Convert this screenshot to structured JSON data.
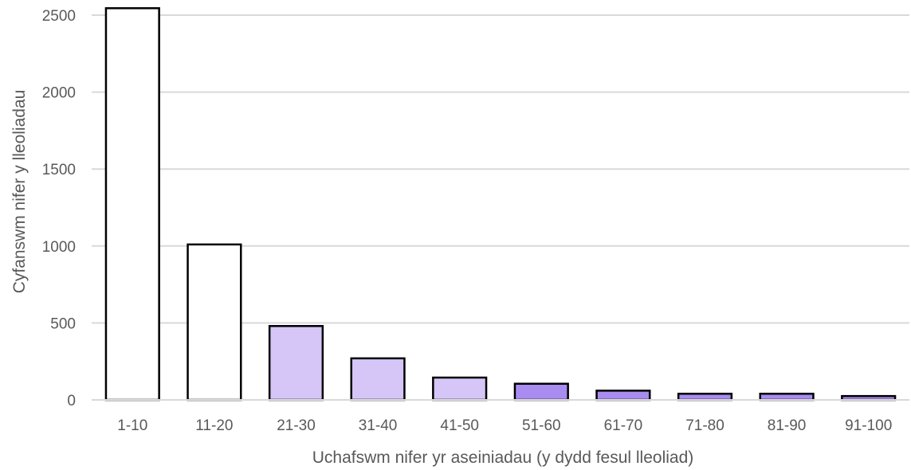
{
  "chart_data": {
    "type": "bar",
    "title": "",
    "xlabel": "Uchafswm nifer yr aseiniadau (y dydd fesul lleoliad)",
    "ylabel": "Cyfanswm nifer y lleoliadau",
    "categories": [
      "1-10",
      "11-20",
      "21-30",
      "31-40",
      "41-50",
      "51-60",
      "61-70",
      "71-80",
      "81-90",
      "91-100"
    ],
    "values": [
      2545,
      1010,
      480,
      270,
      145,
      105,
      60,
      40,
      40,
      25
    ],
    "bar_colors": [
      "#ffffff",
      "#ffffff",
      "#d5c6f7",
      "#d5c6f7",
      "#d5c6f7",
      "#a98cf0",
      "#a98cf0",
      "#a98cf0",
      "#a98cf0",
      "#a98cf0"
    ],
    "ylim": [
      0,
      2500
    ],
    "yticks": [
      0,
      500,
      1000,
      1500,
      2000,
      2500
    ],
    "grid": true,
    "legend": "none"
  }
}
